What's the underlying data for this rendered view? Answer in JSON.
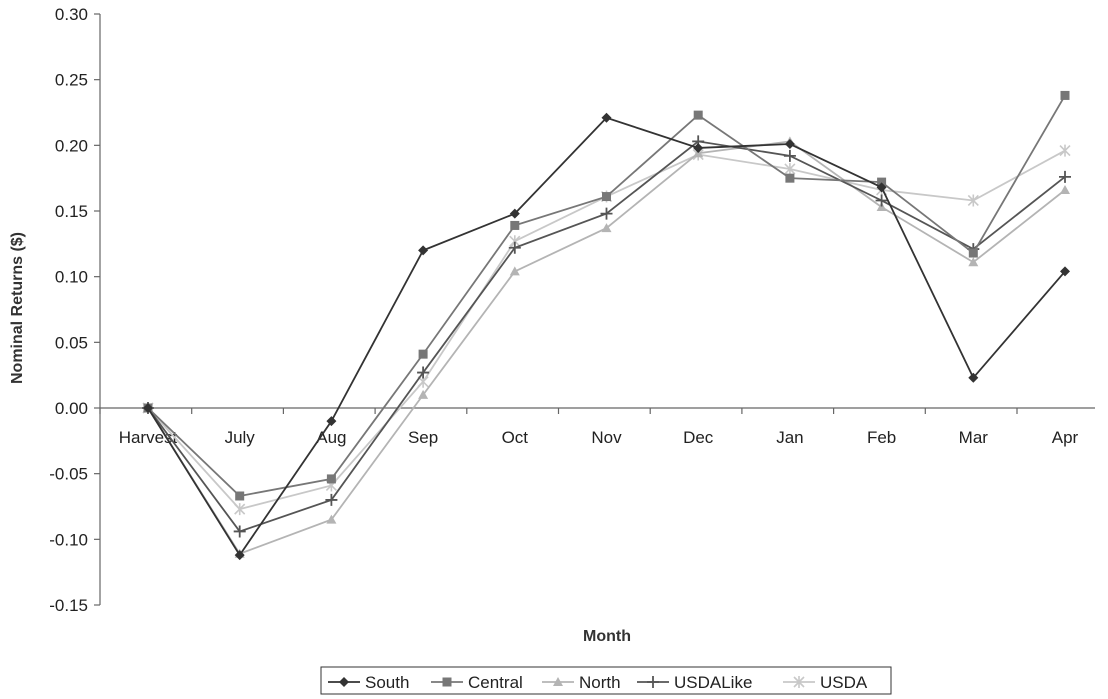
{
  "chart_data": {
    "type": "line",
    "title": "",
    "xlabel": "Month",
    "ylabel": "Nominal Returns ($)",
    "ylim": [
      -0.15,
      0.3
    ],
    "yticks": [
      0.3,
      0.25,
      0.2,
      0.15,
      0.1,
      0.05,
      0.0,
      -0.05,
      -0.1,
      -0.15
    ],
    "ytick_labels": [
      "0.30",
      "0.25",
      "0.20",
      "0.15",
      "0.10",
      "0.05",
      "0.00",
      "-0.05",
      "-0.10",
      "-0.15"
    ],
    "categories": [
      "Harvest",
      "July",
      "Aug",
      "Sep",
      "Oct",
      "Nov",
      "Dec",
      "Jan",
      "Feb",
      "Mar",
      "Apr"
    ],
    "grid": false,
    "legend_position": "bottom",
    "series": [
      {
        "name": "South",
        "marker": "diamond",
        "color": "#333333",
        "values": [
          0.0,
          -0.112,
          -0.01,
          0.12,
          0.148,
          0.221,
          0.198,
          0.201,
          0.168,
          0.023,
          0.104
        ]
      },
      {
        "name": "Central",
        "marker": "square",
        "color": "#777777",
        "values": [
          0.0,
          -0.067,
          -0.054,
          0.041,
          0.139,
          0.161,
          0.223,
          0.175,
          0.172,
          0.118,
          0.238
        ]
      },
      {
        "name": "North",
        "marker": "triangle",
        "color": "#b4b4b4",
        "values": [
          0.0,
          -0.111,
          -0.085,
          0.01,
          0.104,
          0.137,
          0.194,
          0.203,
          0.153,
          0.111,
          0.166
        ]
      },
      {
        "name": "USDALike",
        "marker": "plus",
        "color": "#555555",
        "values": [
          0.0,
          -0.094,
          -0.07,
          0.027,
          0.122,
          0.148,
          0.203,
          0.192,
          0.158,
          0.121,
          0.176
        ]
      },
      {
        "name": "USDA",
        "marker": "star",
        "color": "#c8c8c8",
        "values": [
          0.0,
          -0.077,
          -0.059,
          0.02,
          0.127,
          0.161,
          0.193,
          0.182,
          0.166,
          0.158,
          0.196
        ]
      }
    ]
  }
}
